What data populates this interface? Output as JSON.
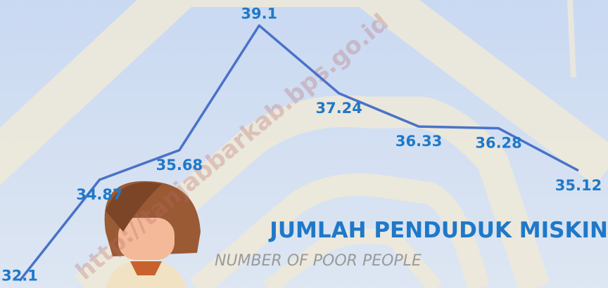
{
  "chart_data": {
    "type": "line",
    "title": "JUMLAH PENDUDUK MISKIN",
    "subtitle": "NUMBER OF POOR PEOPLE",
    "watermark": "http://tanjabbarkab.bps.go.id",
    "categories": [
      null,
      null,
      null,
      null,
      null,
      null,
      null,
      null
    ],
    "series": [
      {
        "color": "#4a72c8",
        "label_color": "#1f78c8",
        "values": [
          32.1,
          34.87,
          35.68,
          39.1,
          37.24,
          36.33,
          36.28,
          35.12
        ]
      }
    ],
    "ylim": [
      31.9,
      39.8
    ]
  }
}
